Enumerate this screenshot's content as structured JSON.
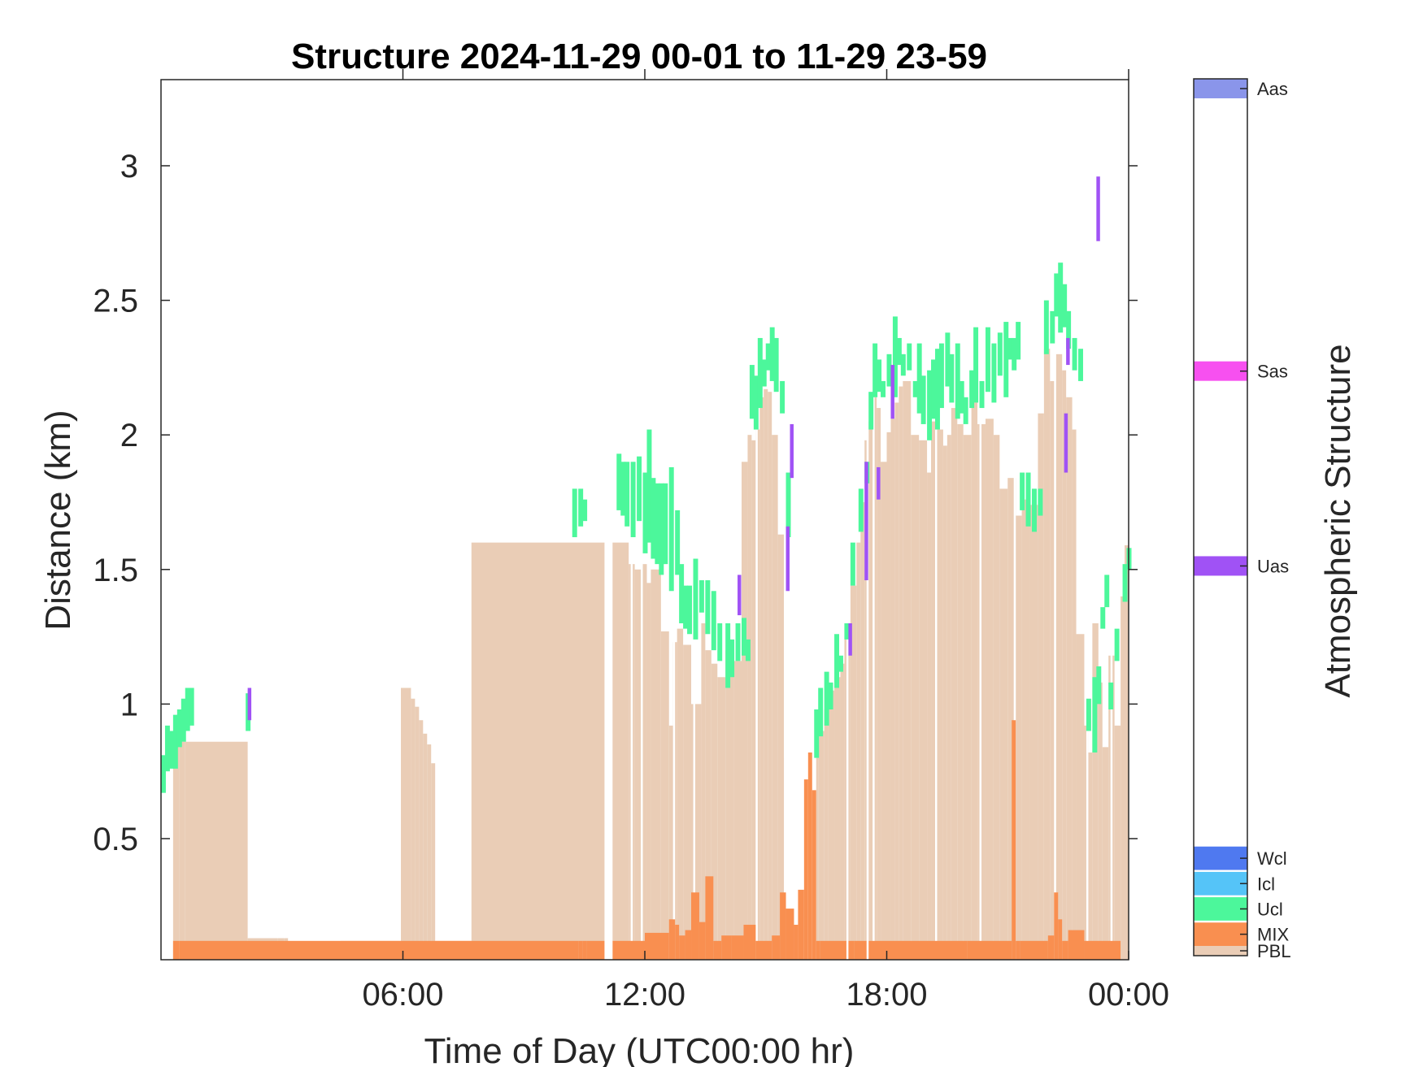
{
  "chart_data": {
    "type": "heatmap",
    "title": "Structure 2024-11-29 00-01 to 11-29 23-59",
    "xlabel": "Time of Day (UTC00:00 hr)",
    "ylabel": "Distance (km)",
    "xlim": [
      0,
      24
    ],
    "ylim": [
      0.05,
      3.32
    ],
    "x_ticks": [
      {
        "value": 6,
        "label": "06:00"
      },
      {
        "value": 12,
        "label": "12:00"
      },
      {
        "value": 18,
        "label": "18:00"
      },
      {
        "value": 24,
        "label": "00:00"
      }
    ],
    "y_ticks": [
      {
        "value": 0.5,
        "label": "0.5"
      },
      {
        "value": 1,
        "label": "1"
      },
      {
        "value": 1.5,
        "label": "1.5"
      },
      {
        "value": 2,
        "label": "2"
      },
      {
        "value": 2.5,
        "label": "2.5"
      },
      {
        "value": 3,
        "label": "3"
      }
    ],
    "colorbar": {
      "label": "Atmospheric Structure",
      "categories": [
        {
          "label": "PBL",
          "color": "#EACDB6"
        },
        {
          "label": "MIX",
          "color": "#F98F50"
        },
        {
          "label": "Ucl",
          "color": "#4CF79B"
        },
        {
          "label": "Icl",
          "color": "#55C4F8"
        },
        {
          "label": "Wcl",
          "color": "#4F79F0"
        },
        {
          "label": "Uas",
          "color": "#A052F5"
        },
        {
          "label": "Sas",
          "color": "#F750F0"
        },
        {
          "label": "Aas",
          "color": "#8A95EA"
        }
      ]
    },
    "pbl": [
      [
        0.45,
        0.86
      ],
      [
        0.6,
        0.86
      ],
      [
        2.15,
        0.86
      ],
      [
        2.9,
        0.13
      ],
      [
        3.05,
        0.13
      ],
      [
        3.15,
        0.13
      ],
      [
        4.45,
        0.08
      ],
      [
        4.55,
        0.12
      ],
      [
        5.95,
        0.12
      ],
      [
        6.2,
        1.06
      ],
      [
        6.3,
        1.02
      ],
      [
        6.4,
        0.99
      ],
      [
        6.5,
        0.94
      ],
      [
        6.6,
        0.89
      ],
      [
        6.7,
        0.85
      ],
      [
        6.8,
        0.78
      ],
      [
        7.7,
        0.12
      ],
      [
        11.6,
        1.6
      ],
      [
        11.75,
        1.52
      ],
      [
        11.95,
        1.5
      ],
      [
        12.05,
        1.52
      ],
      [
        12.15,
        1.45
      ],
      [
        12.4,
        1.5
      ],
      [
        12.6,
        1.27
      ],
      [
        12.7,
        0.92
      ],
      [
        12.8,
        1.23
      ],
      [
        12.95,
        1.28
      ],
      [
        13.15,
        1.22
      ],
      [
        13.4,
        1.0
      ],
      [
        13.5,
        1.3
      ],
      [
        13.65,
        1.2
      ],
      [
        13.8,
        1.15
      ],
      [
        14.0,
        1.1
      ],
      [
        14.2,
        1.2
      ],
      [
        14.4,
        1.16
      ],
      [
        14.55,
        1.9
      ],
      [
        14.65,
        2.0
      ],
      [
        14.75,
        1.98
      ],
      [
        14.85,
        2.02
      ],
      [
        14.95,
        2.14
      ],
      [
        15.05,
        2.17
      ],
      [
        15.15,
        2.16
      ],
      [
        15.3,
        2.0
      ],
      [
        15.45,
        1.63
      ],
      [
        16.3,
        0.8
      ],
      [
        16.45,
        0.9
      ],
      [
        16.55,
        0.98
      ],
      [
        16.7,
        1.05
      ],
      [
        16.85,
        1.1
      ],
      [
        16.95,
        1.15
      ],
      [
        17.1,
        1.3
      ],
      [
        17.25,
        1.44
      ],
      [
        17.35,
        1.6
      ],
      [
        17.45,
        1.75
      ],
      [
        17.55,
        1.98
      ],
      [
        17.65,
        2.05
      ],
      [
        17.75,
        2.14
      ],
      [
        17.85,
        2.1
      ],
      [
        18.0,
        1.9
      ],
      [
        18.1,
        2.01
      ],
      [
        18.2,
        2.06
      ],
      [
        18.3,
        2.12
      ],
      [
        18.4,
        2.18
      ],
      [
        18.6,
        2.2
      ],
      [
        18.8,
        2.0
      ],
      [
        19.0,
        1.98
      ],
      [
        19.1,
        1.86
      ],
      [
        19.25,
        2.05
      ],
      [
        19.4,
        2.02
      ],
      [
        19.5,
        1.96
      ],
      [
        19.6,
        2.0
      ],
      [
        19.75,
        2.1
      ],
      [
        19.9,
        2.04
      ],
      [
        20.1,
        2.0
      ],
      [
        20.25,
        2.12
      ],
      [
        20.45,
        2.04
      ],
      [
        20.65,
        2.06
      ],
      [
        20.8,
        2.0
      ],
      [
        21.0,
        1.8
      ],
      [
        21.2,
        1.84
      ],
      [
        21.35,
        1.7
      ],
      [
        21.55,
        1.76
      ],
      [
        21.75,
        1.74
      ],
      [
        21.9,
        2.08
      ],
      [
        22.05,
        2.32
      ],
      [
        22.2,
        2.2
      ],
      [
        22.35,
        2.3
      ],
      [
        22.45,
        2.24
      ],
      [
        22.6,
        2.14
      ],
      [
        22.7,
        2.02
      ],
      [
        22.9,
        1.26
      ],
      [
        23.0,
        0.92
      ],
      [
        23.1,
        0.82
      ],
      [
        23.25,
        1.3
      ],
      [
        23.35,
        1.08
      ],
      [
        23.5,
        0.84
      ],
      [
        23.65,
        1.18
      ],
      [
        23.8,
        0.92
      ],
      [
        23.9,
        1.4
      ],
      [
        24.0,
        1.59
      ]
    ],
    "pbl_gaps": [
      [
        11.65,
        11.7
      ],
      [
        11.9,
        11.95
      ],
      [
        12.7,
        12.75
      ],
      [
        13.2,
        13.25
      ],
      [
        14.75,
        14.8
      ],
      [
        15.45,
        16.25
      ],
      [
        17.65,
        17.7
      ],
      [
        19.2,
        19.25
      ],
      [
        20.3,
        20.35
      ],
      [
        21.15,
        21.2
      ],
      [
        22.15,
        22.2
      ],
      [
        22.95,
        23.0
      ],
      [
        23.55,
        23.6
      ]
    ],
    "mix": [
      [
        0.45,
        0.12
      ],
      [
        10.35,
        0.12
      ],
      [
        10.45,
        0.12
      ],
      [
        10.55,
        0.12
      ],
      [
        11.2,
        0.12
      ],
      [
        12.0,
        0.12
      ],
      [
        12.6,
        0.15
      ],
      [
        12.75,
        0.2
      ],
      [
        12.85,
        0.18
      ],
      [
        13.0,
        0.14
      ],
      [
        13.15,
        0.16
      ],
      [
        13.35,
        0.3
      ],
      [
        13.5,
        0.19
      ],
      [
        13.7,
        0.36
      ],
      [
        13.9,
        0.12
      ],
      [
        14.15,
        0.14
      ],
      [
        14.45,
        0.14
      ],
      [
        14.75,
        0.18
      ],
      [
        15.15,
        0.12
      ],
      [
        15.35,
        0.14
      ],
      [
        15.5,
        0.3
      ],
      [
        15.7,
        0.24
      ],
      [
        15.8,
        0.18
      ],
      [
        15.95,
        0.31
      ],
      [
        16.05,
        0.72
      ],
      [
        16.15,
        0.82
      ],
      [
        16.25,
        0.68
      ],
      [
        16.35,
        0.12
      ],
      [
        17.2,
        0.12
      ],
      [
        17.55,
        0.12
      ],
      [
        18.0,
        0.12
      ],
      [
        20.0,
        0.12
      ],
      [
        21.1,
        0.12
      ],
      [
        21.2,
        0.94
      ],
      [
        21.3,
        0.12
      ],
      [
        22.0,
        0.12
      ],
      [
        22.15,
        0.14
      ],
      [
        22.25,
        0.3
      ],
      [
        22.35,
        0.2
      ],
      [
        22.5,
        0.12
      ],
      [
        22.9,
        0.16
      ],
      [
        23.8,
        0.12
      ]
    ],
    "mix_gaps": [
      [
        11.0,
        11.2
      ],
      [
        17.0,
        17.05
      ],
      [
        17.5,
        17.55
      ]
    ],
    "ucl": [
      [
        0.0,
        0.67,
        0.81
      ],
      [
        0.1,
        0.75,
        0.92
      ],
      [
        0.2,
        0.76,
        0.9
      ],
      [
        0.3,
        0.76,
        0.96
      ],
      [
        0.4,
        0.84,
        0.98
      ],
      [
        0.5,
        0.86,
        1.02
      ],
      [
        0.6,
        0.9,
        1.06
      ],
      [
        0.7,
        0.92,
        1.06
      ],
      [
        2.1,
        0.9,
        1.04
      ],
      [
        10.2,
        1.62,
        1.8
      ],
      [
        10.35,
        1.66,
        1.8
      ],
      [
        10.45,
        1.68,
        1.76
      ],
      [
        11.3,
        1.72,
        1.93
      ],
      [
        11.4,
        1.7,
        1.9
      ],
      [
        11.5,
        1.66,
        1.9
      ],
      [
        11.65,
        1.62,
        1.9
      ],
      [
        11.8,
        1.68,
        1.92
      ],
      [
        11.95,
        1.56,
        1.86
      ],
      [
        12.05,
        1.6,
        2.02
      ],
      [
        12.15,
        1.54,
        1.84
      ],
      [
        12.25,
        1.52,
        1.82
      ],
      [
        12.35,
        1.48,
        1.82
      ],
      [
        12.45,
        1.52,
        1.82
      ],
      [
        12.6,
        1.42,
        1.88
      ],
      [
        12.75,
        1.48,
        1.72
      ],
      [
        12.85,
        1.3,
        1.52
      ],
      [
        12.95,
        1.28,
        1.44
      ],
      [
        13.05,
        1.26,
        1.44
      ],
      [
        13.2,
        1.24,
        1.54
      ],
      [
        13.35,
        1.34,
        1.46
      ],
      [
        13.5,
        1.26,
        1.46
      ],
      [
        13.65,
        1.2,
        1.42
      ],
      [
        13.8,
        1.16,
        1.3
      ],
      [
        14.0,
        1.06,
        1.3
      ],
      [
        14.1,
        1.1,
        1.24
      ],
      [
        14.25,
        1.16,
        1.3
      ],
      [
        14.4,
        1.18,
        1.32
      ],
      [
        14.5,
        1.16,
        1.24
      ],
      [
        14.6,
        2.06,
        2.26
      ],
      [
        14.7,
        2.02,
        2.22
      ],
      [
        14.8,
        2.1,
        2.36
      ],
      [
        14.9,
        2.18,
        2.28
      ],
      [
        15.0,
        2.24,
        2.34
      ],
      [
        15.1,
        2.2,
        2.4
      ],
      [
        15.2,
        2.16,
        2.36
      ],
      [
        15.35,
        2.08,
        2.2
      ],
      [
        15.5,
        1.62,
        1.86
      ],
      [
        16.2,
        0.8,
        0.98
      ],
      [
        16.3,
        0.88,
        1.06
      ],
      [
        16.45,
        0.92,
        1.12
      ],
      [
        16.55,
        0.98,
        1.08
      ],
      [
        16.7,
        1.06,
        1.26
      ],
      [
        16.8,
        1.12,
        1.18
      ],
      [
        16.95,
        1.24,
        1.3
      ],
      [
        17.1,
        1.44,
        1.6
      ],
      [
        17.3,
        1.64,
        1.8
      ],
      [
        17.45,
        1.82,
        1.9
      ],
      [
        17.55,
        2.02,
        2.16
      ],
      [
        17.65,
        2.14,
        2.34
      ],
      [
        17.75,
        2.16,
        2.28
      ],
      [
        17.85,
        2.14,
        2.2
      ],
      [
        18.0,
        2.18,
        2.3
      ],
      [
        18.15,
        2.14,
        2.44
      ],
      [
        18.25,
        2.26,
        2.36
      ],
      [
        18.35,
        2.22,
        2.3
      ],
      [
        18.5,
        2.24,
        2.34
      ],
      [
        18.65,
        2.14,
        2.2
      ],
      [
        18.75,
        2.08,
        2.34
      ],
      [
        18.85,
        2.04,
        2.22
      ],
      [
        19.0,
        1.98,
        2.24
      ],
      [
        19.1,
        2.06,
        2.28
      ],
      [
        19.2,
        2.02,
        2.32
      ],
      [
        19.3,
        2.1,
        2.34
      ],
      [
        19.45,
        2.18,
        2.38
      ],
      [
        19.55,
        2.12,
        2.3
      ],
      [
        19.7,
        2.06,
        2.34
      ],
      [
        19.8,
        2.08,
        2.2
      ],
      [
        19.9,
        2.04,
        2.14
      ],
      [
        20.05,
        2.1,
        2.24
      ],
      [
        20.15,
        2.12,
        2.4
      ],
      [
        20.3,
        2.1,
        2.2
      ],
      [
        20.45,
        2.16,
        2.4
      ],
      [
        20.6,
        2.12,
        2.34
      ],
      [
        20.75,
        2.22,
        2.38
      ],
      [
        20.9,
        2.14,
        2.42
      ],
      [
        21.0,
        2.28,
        2.36
      ],
      [
        21.1,
        2.24,
        2.36
      ],
      [
        21.2,
        2.28,
        2.42
      ],
      [
        21.3,
        1.72,
        1.86
      ],
      [
        21.45,
        1.66,
        1.86
      ],
      [
        21.6,
        1.64,
        1.8
      ],
      [
        21.75,
        1.7,
        1.8
      ],
      [
        21.9,
        2.3,
        2.5
      ],
      [
        22.05,
        2.34,
        2.46
      ],
      [
        22.15,
        2.44,
        2.6
      ],
      [
        22.25,
        2.38,
        2.64
      ],
      [
        22.35,
        2.4,
        2.56
      ],
      [
        22.45,
        2.32,
        2.46
      ],
      [
        22.6,
        2.24,
        2.36
      ],
      [
        22.75,
        2.2,
        2.32
      ],
      [
        22.95,
        0.9,
        1.02
      ],
      [
        23.1,
        0.82,
        1.1
      ],
      [
        23.2,
        1.0,
        1.14
      ],
      [
        23.3,
        1.28,
        1.36
      ],
      [
        23.4,
        1.36,
        1.48
      ],
      [
        23.5,
        0.98,
        1.08
      ],
      [
        23.65,
        1.16,
        1.28
      ],
      [
        23.85,
        1.38,
        1.52
      ],
      [
        23.95,
        1.5,
        1.58
      ]
    ],
    "uas": [
      [
        2.15,
        0.94,
        1.06
      ],
      [
        14.3,
        1.33,
        1.48
      ],
      [
        15.5,
        1.42,
        1.66
      ],
      [
        15.6,
        1.84,
        2.04
      ],
      [
        17.45,
        1.46,
        1.9
      ],
      [
        17.75,
        1.76,
        1.88
      ],
      [
        18.1,
        2.06,
        2.26
      ],
      [
        22.4,
        1.86,
        2.08
      ],
      [
        22.45,
        2.26,
        2.36
      ],
      [
        23.2,
        2.72,
        2.96
      ],
      [
        17.05,
        1.18,
        1.3
      ]
    ]
  }
}
